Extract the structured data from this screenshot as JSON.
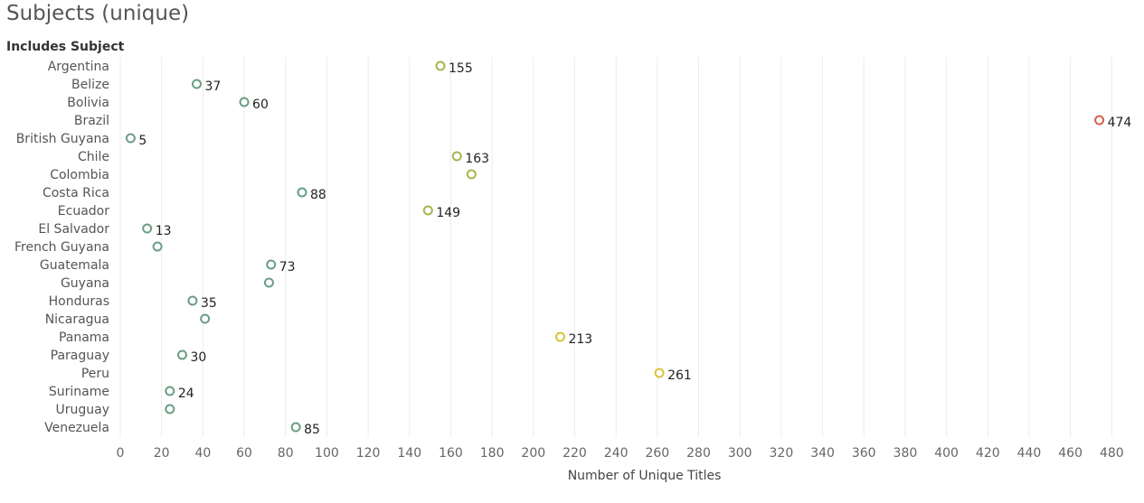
{
  "title": "Subjects (unique)",
  "colors": {
    "low": "#6a9e84",
    "mid_low": "#8fa860",
    "mid": "#a8b44e",
    "mid_high": "#d8c23a",
    "high": "#d0634a",
    "gridline": "#ececec",
    "tick_label": "#666666",
    "row_label": "#555555",
    "data_label": "#222222"
  },
  "chart_data": {
    "type": "scatter",
    "title": "Subjects (unique)",
    "row_header": "Includes Subject",
    "xlabel": "Number of Unique Titles",
    "ylabel": "",
    "xlim": [
      0,
      490
    ],
    "xticks": [
      0,
      20,
      40,
      60,
      80,
      100,
      120,
      140,
      160,
      180,
      200,
      220,
      240,
      260,
      280,
      300,
      320,
      340,
      360,
      380,
      400,
      420,
      440,
      460,
      480
    ],
    "grid": "vertical",
    "legend": "none",
    "categories": [
      "Argentina",
      "Belize",
      "Bolivia",
      "Brazil",
      "British Guyana",
      "Chile",
      "Colombia",
      "Costa Rica",
      "Ecuador",
      "El Salvador",
      "French Guyana",
      "Guatemala",
      "Guyana",
      "Honduras",
      "Nicaragua",
      "Panama",
      "Paraguay",
      "Peru",
      "Suriname",
      "Uruguay",
      "Venezuela"
    ],
    "values": [
      155,
      37,
      60,
      474,
      5,
      163,
      170,
      88,
      149,
      13,
      18,
      73,
      72,
      35,
      41,
      213,
      30,
      261,
      24,
      24,
      85
    ],
    "data_labels": [
      "155",
      "37",
      "60",
      "474",
      "5",
      "163",
      "",
      "88",
      "149",
      "13",
      "",
      "73",
      "",
      "35",
      "",
      "213",
      "30",
      "261",
      "24",
      "",
      "85"
    ]
  }
}
